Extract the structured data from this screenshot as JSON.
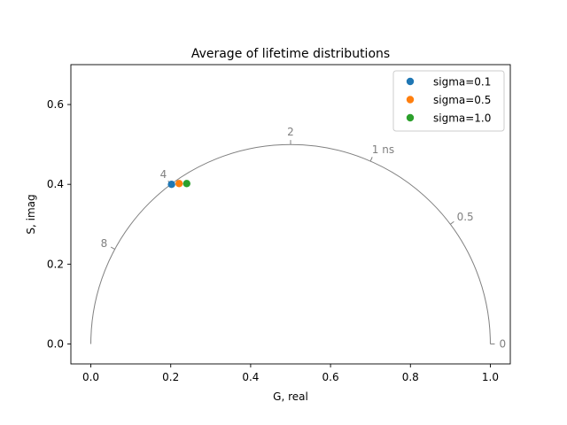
{
  "chart_data": {
    "type": "scatter",
    "title": "Average of lifetime distributions",
    "xlabel": "G, real",
    "ylabel": "S, imag",
    "xlim": [
      -0.05,
      1.05
    ],
    "ylim": [
      -0.05,
      0.7
    ],
    "xticks": [
      0.0,
      0.2,
      0.4,
      0.6,
      0.8,
      1.0
    ],
    "xtick_labels": [
      "0.0",
      "0.2",
      "0.4",
      "0.6",
      "0.8",
      "1.0"
    ],
    "yticks": [
      0.0,
      0.2,
      0.4,
      0.6
    ],
    "ytick_labels": [
      "0.0",
      "0.2",
      "0.4",
      "0.6"
    ],
    "grid": false,
    "legend_position": "top-right",
    "series": [
      {
        "name": "sigma=0.1",
        "color": "#1f77b4",
        "x": [
          0.202
        ],
        "y": [
          0.4
        ]
      },
      {
        "name": "sigma=0.5",
        "color": "#ff7f0e",
        "x": [
          0.221
        ],
        "y": [
          0.402
        ]
      },
      {
        "name": "sigma=1.0",
        "color": "#2ca02c",
        "x": [
          0.24
        ],
        "y": [
          0.402
        ]
      }
    ],
    "universal_circle": {
      "color": "#808080",
      "lifetime_labels": [
        {
          "label": "0",
          "g": 1.0
        },
        {
          "label": "0.5",
          "g": 0.9
        },
        {
          "label": "1 ns",
          "g": 0.7
        },
        {
          "label": "2",
          "g": 0.5
        },
        {
          "label": "4",
          "g": 0.2
        },
        {
          "label": "8",
          "g": 0.06
        }
      ]
    }
  }
}
